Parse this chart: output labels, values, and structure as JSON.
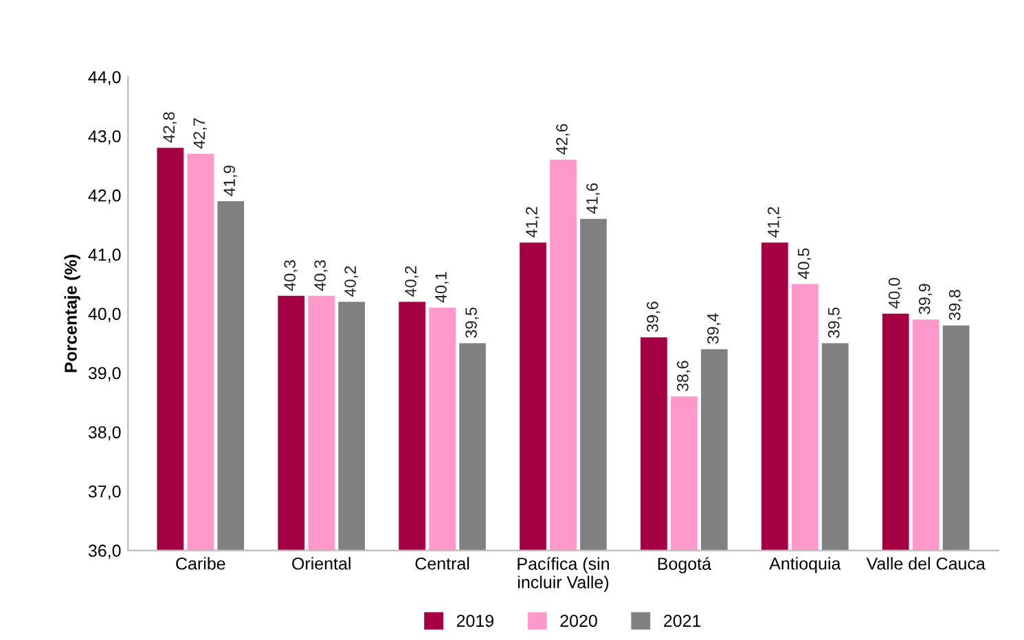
{
  "chart_data": {
    "type": "bar",
    "ylabel": "Porcentaje (%)",
    "categories": [
      "Caribe",
      "Oriental",
      "Central",
      "Pacífica (sin\nincluir Valle)",
      "Bogotá",
      "Antioquia",
      "Valle del Cauca"
    ],
    "series": [
      {
        "name": "2019",
        "color": "#a50044",
        "values": [
          42.8,
          40.3,
          40.2,
          41.2,
          39.6,
          41.2,
          40.0
        ],
        "value_labels": [
          "42,8",
          "40,3",
          "40,2",
          "41,2",
          "39,6",
          "41,2",
          "40,0"
        ]
      },
      {
        "name": "2020",
        "color": "#ff99cc",
        "values": [
          42.7,
          40.3,
          40.1,
          42.6,
          38.6,
          40.5,
          39.9
        ],
        "value_labels": [
          "42,7",
          "40,3",
          "40,1",
          "42,6",
          "38,6",
          "40,5",
          "39,9"
        ]
      },
      {
        "name": "2021",
        "color": "#808080",
        "values": [
          41.9,
          40.2,
          39.5,
          41.6,
          39.4,
          39.5,
          39.8
        ],
        "value_labels": [
          "41,9",
          "40,2",
          "39,5",
          "41,6",
          "39,4",
          "39,5",
          "39,8"
        ]
      }
    ],
    "ylim": [
      36,
      44
    ],
    "yticks": [
      {
        "value": 36,
        "label": "36,0"
      },
      {
        "value": 37,
        "label": "37,0"
      },
      {
        "value": 38,
        "label": "38,0"
      },
      {
        "value": 39,
        "label": "39,0"
      },
      {
        "value": 40,
        "label": "40,0"
      },
      {
        "value": 41,
        "label": "41,0"
      },
      {
        "value": 42,
        "label": "42,0"
      },
      {
        "value": 43,
        "label": "43,0"
      },
      {
        "value": 44,
        "label": "44,0"
      }
    ],
    "grid": false,
    "legend": "bottom"
  }
}
